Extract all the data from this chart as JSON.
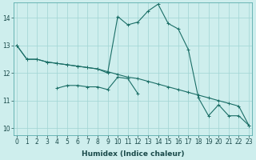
{
  "xlabel": "Humidex (Indice chaleur)",
  "background_color": "#ceeeed",
  "grid_color": "#9fd4d3",
  "line_color": "#1a6e66",
  "x_ticks": [
    0,
    1,
    2,
    3,
    4,
    5,
    6,
    7,
    8,
    9,
    10,
    11,
    12,
    13,
    14,
    15,
    16,
    17,
    18,
    19,
    20,
    21,
    22,
    23
  ],
  "y_ticks": [
    10,
    11,
    12,
    13,
    14
  ],
  "xlim": [
    -0.3,
    23.3
  ],
  "ylim": [
    9.75,
    14.55
  ],
  "line1_x": [
    0,
    1,
    2,
    3,
    4,
    5,
    6,
    7,
    8,
    9,
    10,
    11,
    12,
    13,
    14,
    15,
    16,
    17,
    18,
    19,
    20,
    21,
    22,
    23
  ],
  "line1_y": [
    13.0,
    12.5,
    12.5,
    12.4,
    12.35,
    12.3,
    12.25,
    12.2,
    12.15,
    12.05,
    11.95,
    11.85,
    11.8,
    11.7,
    11.6,
    11.5,
    11.4,
    11.3,
    11.2,
    11.1,
    11.0,
    10.9,
    10.8,
    10.1
  ],
  "line2_x": [
    0,
    1,
    2,
    3,
    4,
    5,
    6,
    7,
    8,
    9,
    10,
    11,
    12,
    13,
    14,
    15,
    16,
    17,
    18,
    19,
    20,
    21,
    22,
    23
  ],
  "line2_y": [
    13.0,
    12.5,
    12.5,
    12.4,
    12.35,
    12.3,
    12.25,
    12.2,
    12.15,
    12.0,
    14.05,
    13.75,
    13.85,
    14.25,
    14.5,
    13.8,
    13.6,
    12.85,
    11.1,
    10.45,
    10.85,
    10.45,
    10.45,
    10.1
  ],
  "line3_x": [
    4,
    5,
    6,
    7,
    8,
    9,
    10,
    11,
    12
  ],
  "line3_y": [
    11.45,
    11.55,
    11.55,
    11.5,
    11.5,
    11.4,
    11.85,
    11.8,
    11.25
  ]
}
